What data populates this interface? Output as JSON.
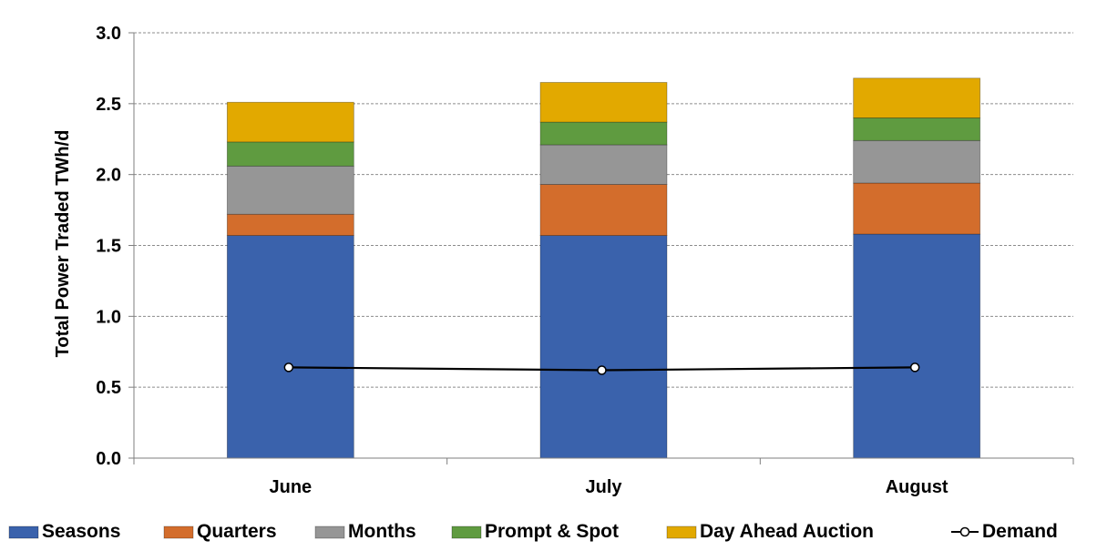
{
  "chart_data": {
    "type": "bar",
    "stacked": true,
    "title": "",
    "xlabel": "",
    "ylabel": "Total Power Traded TWh/d",
    "ylim": [
      0,
      3.0
    ],
    "yticks": [
      "0.0",
      "0.5",
      "1.0",
      "1.5",
      "2.0",
      "2.5",
      "3.0"
    ],
    "grid": true,
    "legend_position": "bottom",
    "categories": [
      "June",
      "July",
      "August"
    ],
    "series": [
      {
        "name": "Seasons",
        "color": "#3a62ac",
        "values": [
          1.57,
          1.57,
          1.58
        ]
      },
      {
        "name": "Quarters",
        "color": "#d36d2c",
        "values": [
          0.15,
          0.36,
          0.36
        ]
      },
      {
        "name": "Months",
        "color": "#969696",
        "values": [
          0.34,
          0.28,
          0.3
        ]
      },
      {
        "name": "Prompt & Spot",
        "color": "#5f9b40",
        "values": [
          0.17,
          0.16,
          0.16
        ]
      },
      {
        "name": "Day Ahead Auction",
        "color": "#e2a900",
        "values": [
          0.28,
          0.28,
          0.28
        ]
      }
    ],
    "line_series": {
      "name": "Demand",
      "color": "#000000",
      "values": [
        0.64,
        0.62,
        0.64
      ]
    }
  }
}
